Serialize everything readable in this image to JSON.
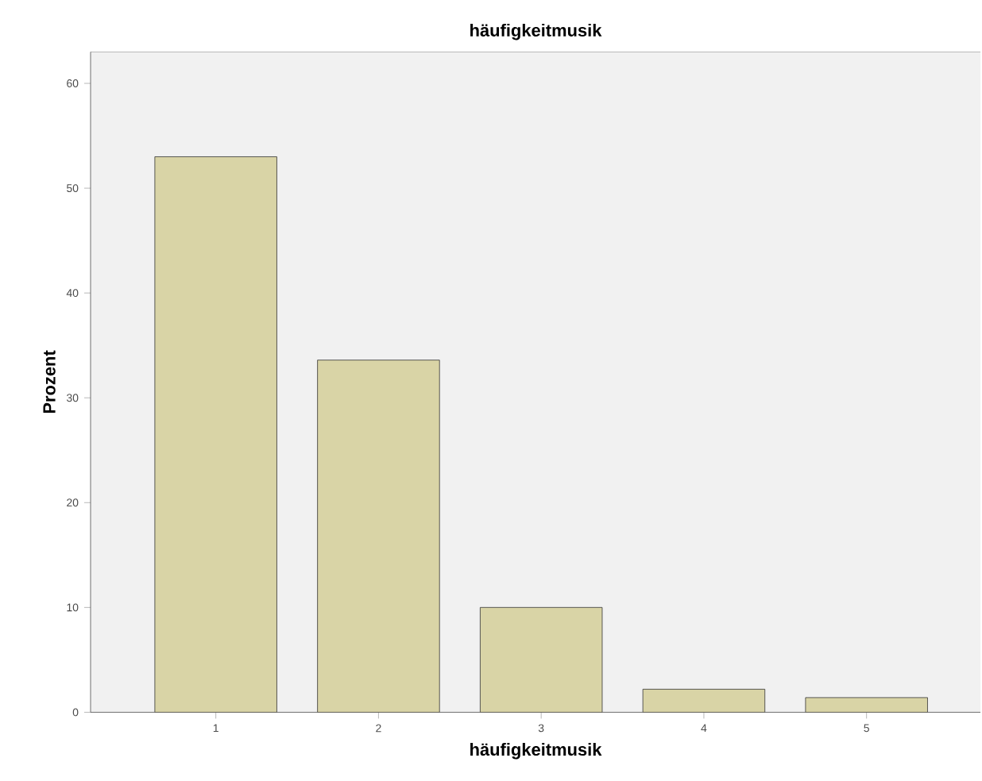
{
  "chart_data": {
    "type": "bar",
    "title": "häufigkeitmusik",
    "xlabel": "häufigkeitmusik",
    "ylabel": "Prozent",
    "categories": [
      "1",
      "2",
      "3",
      "4",
      "5"
    ],
    "values": [
      53.0,
      33.6,
      10.0,
      2.2,
      1.4
    ],
    "color": "#d9d4a6",
    "ylim": [
      0,
      63
    ],
    "yticks": [
      0,
      10,
      20,
      30,
      40,
      50,
      60
    ],
    "grid": false
  }
}
